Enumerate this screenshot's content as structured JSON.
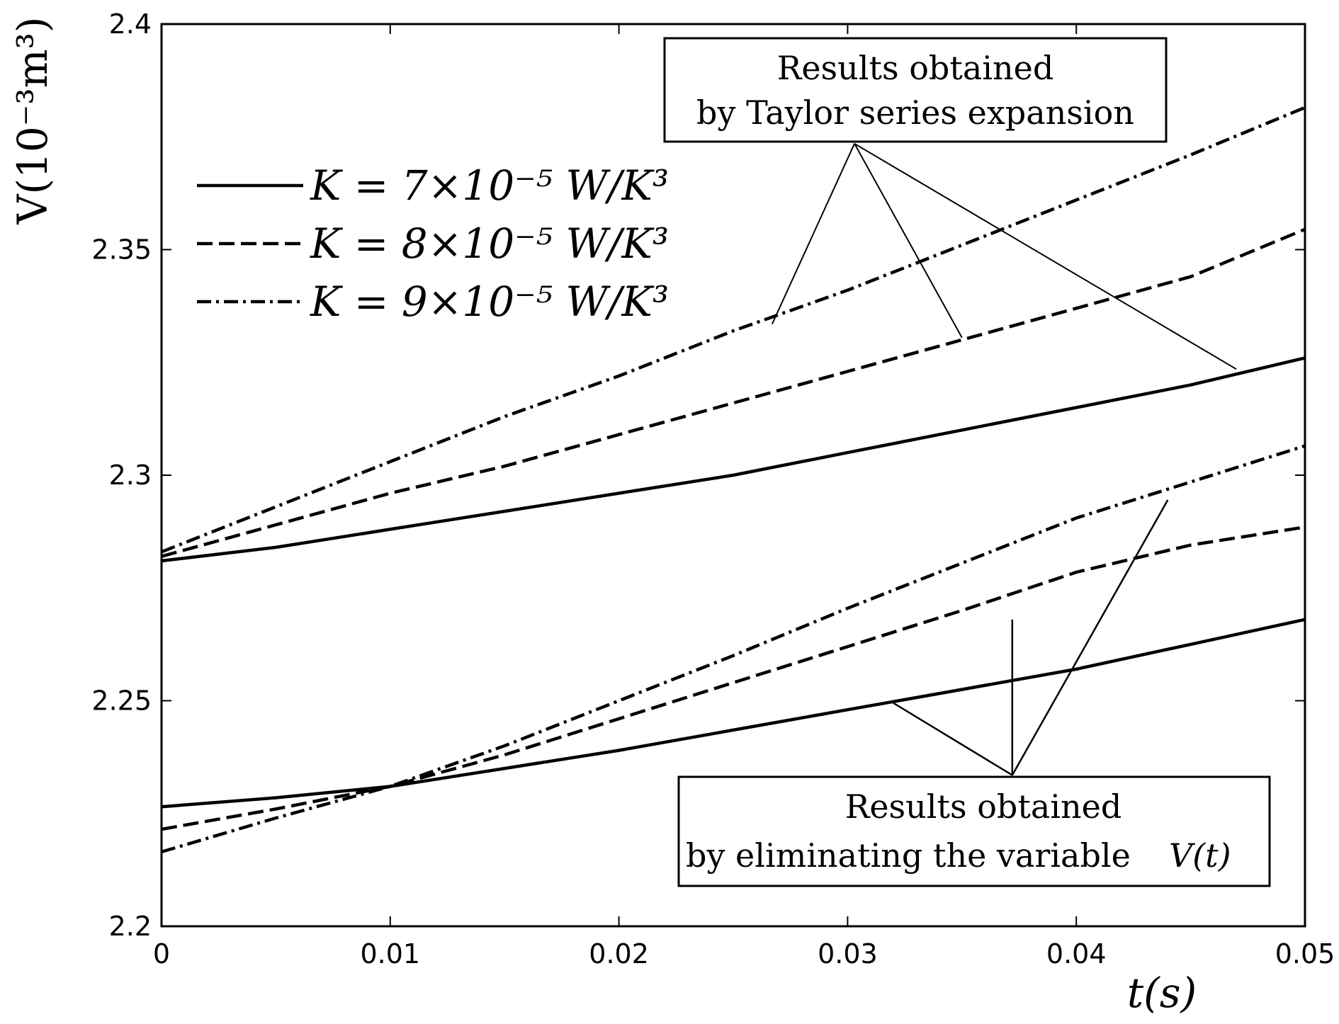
{
  "chart_data": {
    "type": "line",
    "xlabel": "t(s)",
    "ylabel": "V(10⁻³m³)",
    "xlim": [
      0,
      0.05
    ],
    "ylim": [
      2.2,
      2.4
    ],
    "x_ticks": [
      "0",
      "0.01",
      "0.02",
      "0.03",
      "0.04",
      "0.05"
    ],
    "y_ticks": [
      "2.2",
      "2.25",
      "2.3",
      "2.35",
      "2.4"
    ],
    "grid": false,
    "legend_position": "upper-left",
    "x": [
      0,
      0.005,
      0.01,
      0.015,
      0.02,
      0.025,
      0.03,
      0.035,
      0.04,
      0.045,
      0.05
    ],
    "series": [
      {
        "name": "K = 7×10⁻⁵ W/K³",
        "style": "solid",
        "group": "taylor",
        "values": [
          2.281,
          2.284,
          2.288,
          2.292,
          2.296,
          2.3,
          2.305,
          2.31,
          2.315,
          2.32,
          2.326
        ]
      },
      {
        "name": "K = 8×10⁻⁵ W/K³",
        "style": "dashed",
        "group": "taylor",
        "values": [
          2.282,
          2.289,
          2.296,
          2.302,
          2.309,
          2.316,
          2.323,
          2.33,
          2.337,
          2.344,
          2.3545
        ]
      },
      {
        "name": "K = 9×10⁻⁵ W/K³",
        "style": "dashdot",
        "group": "taylor",
        "values": [
          2.283,
          2.293,
          2.303,
          2.313,
          2.322,
          2.332,
          2.341,
          2.351,
          2.361,
          2.371,
          2.3815
        ]
      },
      {
        "name": "K = 7×10⁻⁵ W/K³",
        "style": "solid",
        "group": "eliminating",
        "values": [
          2.2265,
          2.2285,
          2.231,
          2.235,
          2.239,
          2.2435,
          2.248,
          2.2525,
          2.257,
          2.2625,
          2.268
        ]
      },
      {
        "name": "K = 8×10⁻⁵ W/K³",
        "style": "dashed",
        "group": "eliminating",
        "values": [
          2.2215,
          2.226,
          2.231,
          2.238,
          2.246,
          2.254,
          2.262,
          2.27,
          2.2785,
          2.2845,
          2.2885
        ]
      },
      {
        "name": "K = 9×10⁻⁵ W/K³",
        "style": "dashdot",
        "group": "eliminating",
        "values": [
          2.2165,
          2.224,
          2.231,
          2.24,
          2.25,
          2.26,
          2.2705,
          2.2805,
          2.2905,
          2.2985,
          2.3065
        ]
      }
    ],
    "annotations": [
      {
        "lines": [
          "Results obtained",
          "by Taylor series expansion"
        ],
        "anchor": [
          0.0303,
          2.3735
        ],
        "targets": [
          [
            0.0267,
            2.3335
          ],
          [
            0.035,
            2.3305
          ],
          [
            0.047,
            2.3235
          ]
        ]
      },
      {
        "lines": [
          "Results obtained",
          "by eliminating the variable"
        ],
        "suffix": "V(t)",
        "anchor": [
          0.0372,
          2.2335
        ],
        "targets": [
          [
            0.032,
            2.2495
          ],
          [
            0.0372,
            2.268
          ],
          [
            0.044,
            2.2945
          ]
        ]
      }
    ]
  }
}
